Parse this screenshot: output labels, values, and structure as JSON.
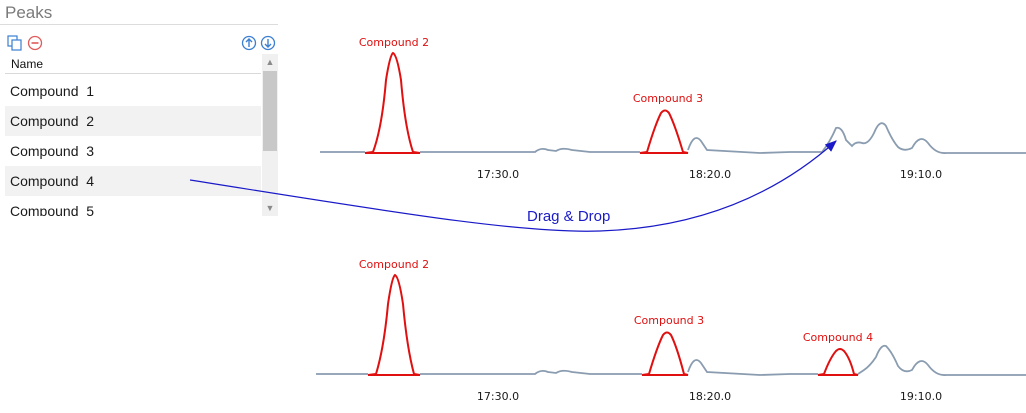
{
  "panel": {
    "title": "Peaks",
    "column_header": "Name",
    "toolbar_icons": [
      "copy-icon",
      "remove-icon",
      "move-up-icon",
      "move-down-icon"
    ],
    "rows": [
      "Compound  1",
      "Compound  2",
      "Compound  3",
      "Compound  4",
      "Compound  5"
    ],
    "scroll_up_glyph": "▲",
    "scroll_down_glyph": "▼"
  },
  "chromatogram_top": {
    "labels": [
      "Compound 2",
      "Compound 3"
    ],
    "ticks": [
      "17:30.0",
      "18:20.0",
      "19:10.0"
    ]
  },
  "chromatogram_bottom": {
    "labels": [
      "Compound 2",
      "Compound 3",
      "Compound 4"
    ],
    "ticks": [
      "17:30.0",
      "18:20.0",
      "19:10.0"
    ]
  },
  "drag_annotation": "Drag & Drop",
  "colors": {
    "peak": "#e01010",
    "baseline": "#8a9cb0",
    "arrow": "#1a1ac8",
    "icon_blue": "#3b7fd1",
    "icon_red": "#e05a5a"
  }
}
